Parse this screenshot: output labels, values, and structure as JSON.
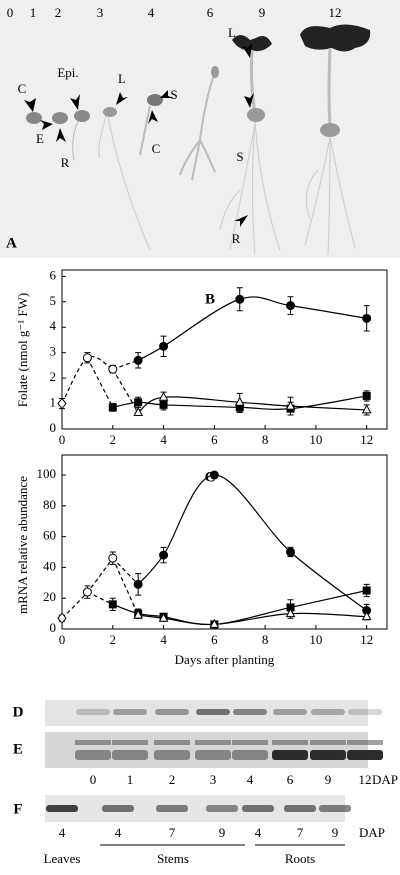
{
  "panel_a": {
    "label": "A",
    "days": [
      "0",
      "1",
      "2",
      "3",
      "4",
      "6",
      "9",
      "12"
    ],
    "annotations": [
      "C",
      "E",
      "R",
      "Epi.",
      "L",
      "S",
      "C",
      "S",
      "L",
      "R"
    ]
  },
  "chart_data": [
    {
      "type": "line",
      "panel_label": "B",
      "y_label": "Folate (nmol g⁻¹ FW)",
      "xlim": [
        0,
        12.8
      ],
      "xticks": [
        0,
        2,
        4,
        6,
        8,
        10,
        12
      ],
      "ylim": [
        0,
        6.25
      ],
      "yticks": [
        0,
        1,
        2,
        3,
        4,
        5,
        6
      ],
      "series": [
        {
          "marker": "circle",
          "filled": false,
          "dashed": true,
          "first_marker": "diamond",
          "color": "#000000",
          "x": [
            0,
            1,
            2
          ],
          "values": [
            1.0,
            2.8,
            2.35
          ],
          "errors": [
            0.2,
            0.2,
            0.15
          ]
        },
        {
          "marker": "circle",
          "filled": true,
          "dashed": false,
          "color": "#000000",
          "x": [
            3,
            4,
            7,
            9,
            12
          ],
          "values": [
            2.7,
            3.25,
            5.1,
            4.85,
            4.35
          ],
          "errors": [
            0.3,
            0.4,
            0.45,
            0.35,
            0.5
          ]
        },
        {
          "marker": "square",
          "filled": true,
          "dashed": false,
          "color": "#000000",
          "x": [
            2,
            3,
            4,
            7,
            9,
            12
          ],
          "values": [
            0.85,
            1.05,
            0.95,
            0.85,
            0.8,
            1.3
          ],
          "errors": [
            0.15,
            0.2,
            0.2,
            0.2,
            0.25,
            0.2
          ]
        },
        {
          "marker": "triangle",
          "filled": false,
          "dashed": false,
          "color": "#000000",
          "x": [
            3,
            4,
            7,
            9,
            12
          ],
          "values": [
            0.65,
            1.25,
            1.05,
            0.9,
            0.75
          ],
          "errors": [
            0.1,
            0.2,
            0.35,
            0.35,
            0.2
          ]
        }
      ]
    },
    {
      "type": "line",
      "panel_label": "C",
      "y_label": "mRNA relative abundance",
      "x_label": "Days after planting",
      "xlim": [
        0,
        12.8
      ],
      "xticks": [
        0,
        2,
        4,
        6,
        8,
        10,
        12
      ],
      "ylim": [
        0,
        113
      ],
      "yticks": [
        0,
        20,
        40,
        60,
        80,
        100
      ],
      "series": [
        {
          "marker": "circle",
          "filled": false,
          "dashed": true,
          "first_marker": "diamond",
          "color": "#000000",
          "x": [
            0,
            1,
            2
          ],
          "values": [
            7,
            24,
            46
          ],
          "errors": [
            2,
            4,
            4
          ]
        },
        {
          "marker": "circle",
          "filled": true,
          "dashed": false,
          "color": "#000000",
          "x": [
            3,
            4,
            6,
            9,
            12
          ],
          "values": [
            29,
            48,
            100,
            50,
            12
          ],
          "errors": [
            7,
            5,
            1,
            3,
            4
          ]
        },
        {
          "marker": "square",
          "filled": true,
          "dashed": false,
          "color": "#000000",
          "x": [
            2,
            3,
            4,
            6,
            9,
            12
          ],
          "values": [
            16,
            10,
            8,
            3,
            14,
            25
          ],
          "errors": [
            4,
            3,
            2,
            1,
            5,
            4
          ]
        },
        {
          "marker": "triangle",
          "filled": false,
          "dashed": false,
          "color": "#000000",
          "x": [
            3,
            4,
            6,
            9,
            12
          ],
          "values": [
            9,
            7,
            3,
            10,
            8
          ],
          "errors": [
            2,
            2,
            1,
            3,
            2
          ]
        }
      ]
    }
  ],
  "blots": {
    "d_label": "D",
    "e_label": "E",
    "lanes": [
      "0",
      "1",
      "2",
      "3",
      "4",
      "6",
      "9",
      "12"
    ],
    "lanes_unit": "DAP",
    "f_label": "F",
    "f_lanes": [
      "4",
      "4",
      "7",
      "9",
      "4",
      "7",
      "9"
    ],
    "f_unit": "DAP",
    "groups": [
      "Leaves",
      "Stems",
      "Roots"
    ]
  }
}
